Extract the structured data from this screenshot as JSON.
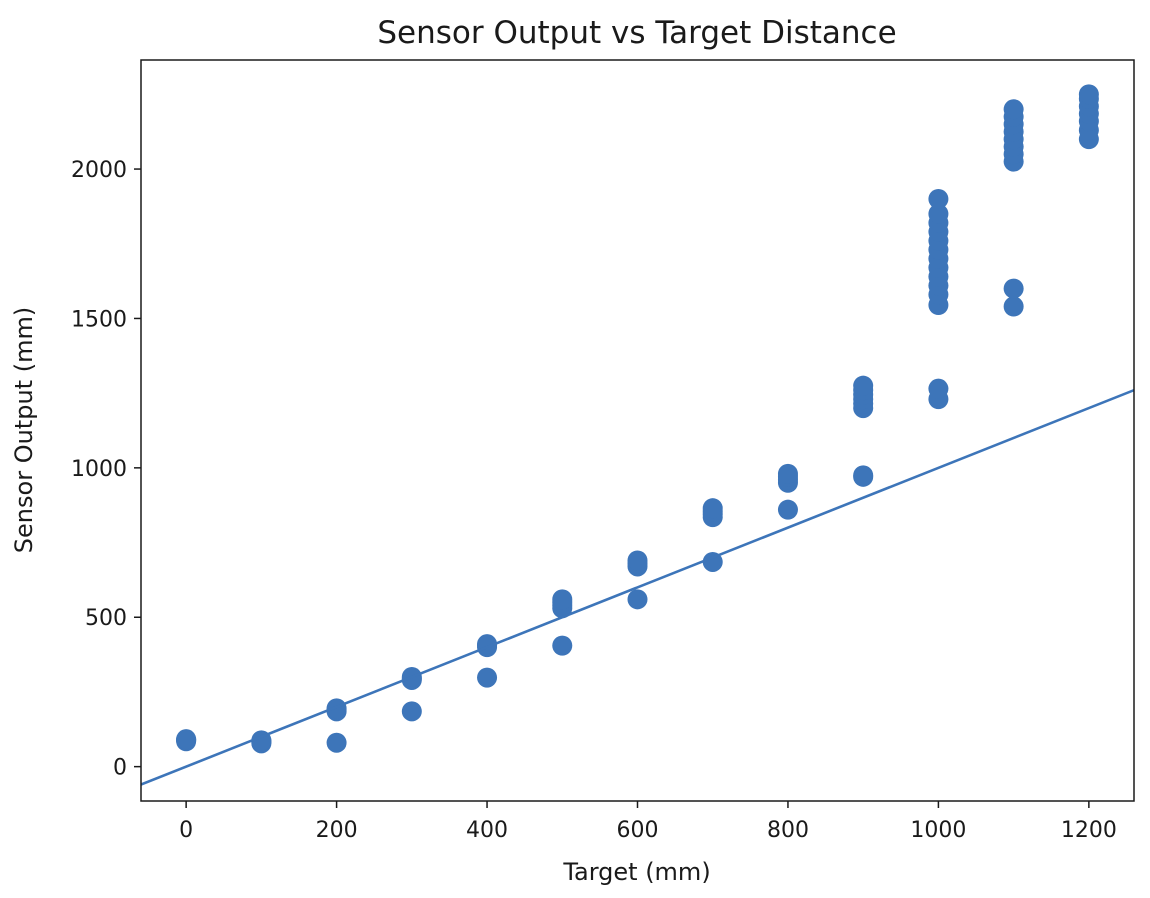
{
  "chart_data": {
    "type": "scatter",
    "title": "Sensor Output vs Target Distance",
    "xlabel": "Target (mm)",
    "ylabel": "Sensor Output (mm)",
    "xlim": [
      -60,
      1260
    ],
    "ylim": [
      -115,
      2365
    ],
    "xticks": [
      0,
      200,
      400,
      600,
      800,
      1000,
      1200
    ],
    "yticks": [
      0,
      500,
      1000,
      1500,
      2000
    ],
    "grid": false,
    "colors": {
      "marker": "#3d75b9",
      "line": "#3d75b9",
      "axis": "#1a1a1a"
    },
    "series": [
      {
        "kind": "scatter",
        "points": [
          [
            0,
            85
          ],
          [
            0,
            88
          ],
          [
            0,
            90
          ],
          [
            0,
            92
          ],
          [
            100,
            78
          ],
          [
            100,
            82
          ],
          [
            100,
            85
          ],
          [
            100,
            88
          ],
          [
            200,
            80
          ],
          [
            200,
            185
          ],
          [
            200,
            190
          ],
          [
            200,
            195
          ],
          [
            300,
            185
          ],
          [
            300,
            290
          ],
          [
            300,
            295
          ],
          [
            300,
            300
          ],
          [
            400,
            298
          ],
          [
            400,
            400
          ],
          [
            400,
            405
          ],
          [
            400,
            410
          ],
          [
            500,
            405
          ],
          [
            500,
            530
          ],
          [
            500,
            540
          ],
          [
            500,
            550
          ],
          [
            500,
            560
          ],
          [
            600,
            560
          ],
          [
            600,
            670
          ],
          [
            600,
            680
          ],
          [
            600,
            690
          ],
          [
            700,
            685
          ],
          [
            700,
            835
          ],
          [
            700,
            845
          ],
          [
            700,
            855
          ],
          [
            700,
            865
          ],
          [
            800,
            860
          ],
          [
            800,
            950
          ],
          [
            800,
            960
          ],
          [
            800,
            970
          ],
          [
            800,
            980
          ],
          [
            900,
            970
          ],
          [
            900,
            975
          ],
          [
            900,
            1200
          ],
          [
            900,
            1215
          ],
          [
            900,
            1230
          ],
          [
            900,
            1245
          ],
          [
            900,
            1260
          ],
          [
            900,
            1275
          ],
          [
            1000,
            1230
          ],
          [
            1000,
            1265
          ],
          [
            1000,
            1545
          ],
          [
            1000,
            1580
          ],
          [
            1000,
            1610
          ],
          [
            1000,
            1640
          ],
          [
            1000,
            1670
          ],
          [
            1000,
            1700
          ],
          [
            1000,
            1730
          ],
          [
            1000,
            1760
          ],
          [
            1000,
            1790
          ],
          [
            1000,
            1820
          ],
          [
            1000,
            1850
          ],
          [
            1000,
            1900
          ],
          [
            1100,
            1540
          ],
          [
            1100,
            1600
          ],
          [
            1100,
            2025
          ],
          [
            1100,
            2050
          ],
          [
            1100,
            2075
          ],
          [
            1100,
            2100
          ],
          [
            1100,
            2125
          ],
          [
            1100,
            2150
          ],
          [
            1100,
            2175
          ],
          [
            1100,
            2200
          ],
          [
            1200,
            2100
          ],
          [
            1200,
            2130
          ],
          [
            1200,
            2160
          ],
          [
            1200,
            2185
          ],
          [
            1200,
            2210
          ],
          [
            1200,
            2235
          ],
          [
            1200,
            2250
          ]
        ]
      },
      {
        "kind": "line",
        "points": [
          [
            -60,
            -60
          ],
          [
            1260,
            1260
          ]
        ]
      }
    ]
  }
}
